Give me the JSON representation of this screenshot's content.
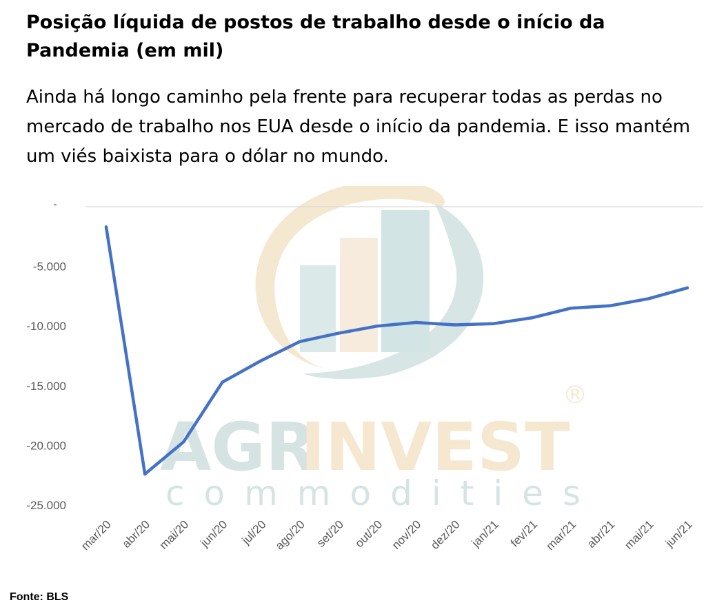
{
  "header": {
    "title": "Posição líquida de postos de trabalho desde o início da Pandemia (em mil)",
    "subtitle": "Ainda há longo caminho pela frente para recuperar todas as perdas no mercado de trabalho nos EUA desde o início da pandemia. E isso mantém um viés baixista para o dólar no mundo."
  },
  "watermark": {
    "brand_part1": "AGR",
    "brand_part2": "INVEST",
    "tagline": "commodities",
    "registered": "®"
  },
  "footer": {
    "source": "Fonte: BLS"
  },
  "colors": {
    "line": "#4472C4",
    "tick_text": "#595959",
    "axis_line": "#D9D9D9"
  },
  "chart_data": {
    "type": "line",
    "title": "",
    "xlabel": "",
    "ylabel": "",
    "categories": [
      "mar/20",
      "abr/20",
      "mai/20",
      "jun/20",
      "jul/20",
      "ago/20",
      "set/20",
      "out/20",
      "nov/20",
      "dez/20",
      "jan/21",
      "fev/21",
      "mar/21",
      "abr/21",
      "mai/21",
      "jun/21"
    ],
    "series": [
      {
        "values": [
          -1700,
          -22400,
          -19700,
          -14700,
          -12900,
          -11300,
          -10600,
          -10000,
          -9700,
          -9900,
          -9800,
          -9300,
          -8500,
          -8300,
          -7700,
          -6800
        ]
      }
    ],
    "ylim": [
      -25000,
      0
    ],
    "y_ticks": [
      0,
      -5000,
      -10000,
      -15000,
      -20000,
      -25000
    ],
    "y_tick_labels": [
      "-",
      "-5.000",
      "-10.000",
      "-15.000",
      "-20.000",
      "-25.000"
    ],
    "grid": false,
    "legend": "none"
  }
}
